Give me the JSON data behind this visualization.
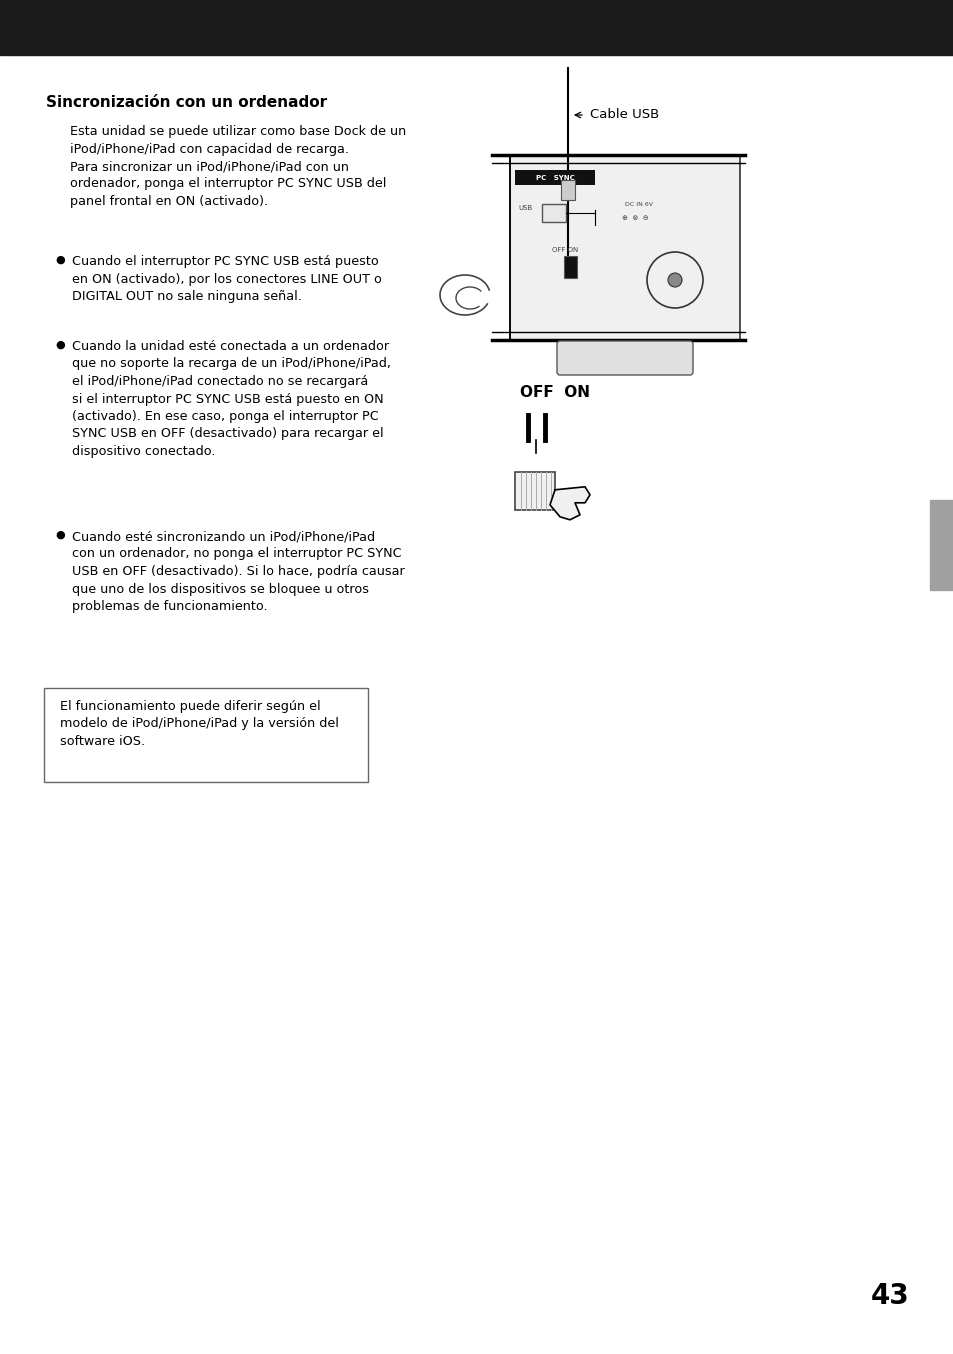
{
  "page_number": "43",
  "header_bar_color": "#1a1a1a",
  "background_color": "#ffffff",
  "text_color": "#000000",
  "title": "Sincronización con un ordenador",
  "title_fontsize": 11,
  "body_fontsize": 9.2,
  "body_text_1": "Esta unidad se puede utilizar como base Dock de un\niPod/iPhone/iPad con capacidad de recarga.\nPara sincronizar un iPod/iPhone/iPad con un\nordenador, ponga el interruptor PC SYNC USB del\npanel frontal en ON (activado).",
  "bullet1_text": "Cuando el interruptor PC SYNC USB está puesto\nen ON (activado), por los conectores LINE OUT o\nDIGITAL OUT no sale ninguna señal.",
  "bullet2_text": "Cuando la unidad esté conectada a un ordenador\nque no soporte la recarga de un iPod/iPhone/iPad,\nel iPod/iPhone/iPad conectado no se recargará\nsi el interruptor PC SYNC USB está puesto en ON\n(activado). En ese caso, ponga el interruptor PC\nSYNC USB en OFF (desactivado) para recargar el\ndispositivo conectado.",
  "bullet3_text": "Cuando esté sincronizando un iPod/iPhone/iPad\ncon un ordenador, no ponga el interruptor PC SYNC\nUSB en OFF (desactivado). Si lo hace, podría causar\nque uno de los dispositivos se bloquee u otros\nproblemas de funcionamiento.",
  "note_text": "El funcionamiento puede diferir según el\nmodelo de iPod/iPhone/iPad y la versión del\nsoftware iOS.",
  "cable_usb_label": "Cable USB",
  "off_on_label": "OFF  ON",
  "gray_tab_color": "#a0a0a0"
}
